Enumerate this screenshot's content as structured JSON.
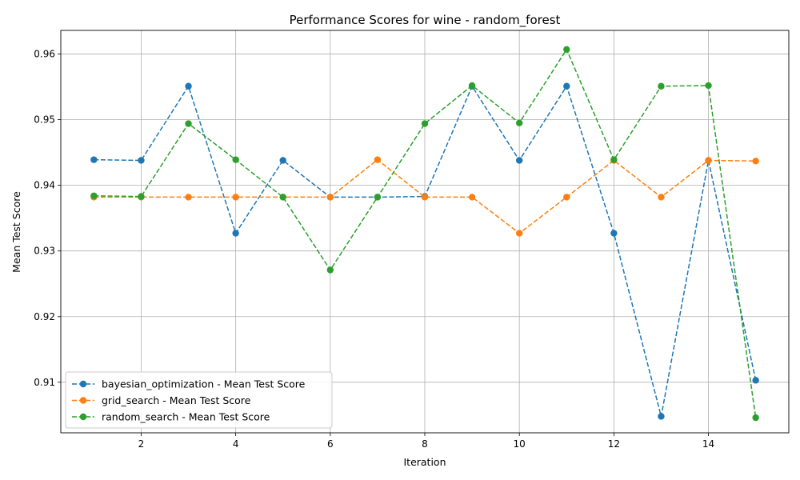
{
  "chart_data": {
    "type": "line",
    "title": "Performance Scores for wine - random_forest",
    "xlabel": "Iteration",
    "ylabel": "Mean Test Score",
    "xlim": [
      0.3,
      15.7
    ],
    "ylim": [
      0.9023,
      0.9636
    ],
    "xticks": [
      2,
      4,
      6,
      8,
      10,
      12,
      14
    ],
    "yticks": [
      0.91,
      0.92,
      0.93,
      0.94,
      0.95,
      0.96
    ],
    "xtick_labels": [
      "2",
      "4",
      "6",
      "8",
      "10",
      "12",
      "14"
    ],
    "ytick_labels": [
      "0.91",
      "0.92",
      "0.93",
      "0.94",
      "0.95",
      "0.96"
    ],
    "grid": true,
    "legend_position": "lower-left",
    "x": [
      1,
      2,
      3,
      4,
      5,
      6,
      7,
      8,
      9,
      10,
      11,
      12,
      13,
      14,
      15
    ],
    "series": [
      {
        "name": "bayesian_optimization - Mean Test Score",
        "color": "#1f77b4",
        "values": [
          0.9439,
          0.9438,
          0.9551,
          0.9327,
          0.9438,
          0.9382,
          0.9382,
          0.9383,
          0.9551,
          0.9438,
          0.9551,
          0.9327,
          0.9048,
          0.9438,
          0.9103
        ]
      },
      {
        "name": "grid_search - Mean Test Score",
        "color": "#ff7f0e",
        "values": [
          0.9382,
          0.9382,
          0.9382,
          0.9382,
          0.9382,
          0.9382,
          0.9439,
          0.9382,
          0.9382,
          0.9327,
          0.9382,
          0.9438,
          0.9382,
          0.9438,
          0.9437
        ]
      },
      {
        "name": "random_search - Mean Test Score",
        "color": "#2ca02c",
        "values": [
          0.9384,
          0.9383,
          0.9494,
          0.9439,
          0.9382,
          0.9271,
          0.9382,
          0.9494,
          0.9552,
          0.9495,
          0.9607,
          0.9439,
          0.9551,
          0.9552,
          0.9046
        ]
      }
    ]
  }
}
